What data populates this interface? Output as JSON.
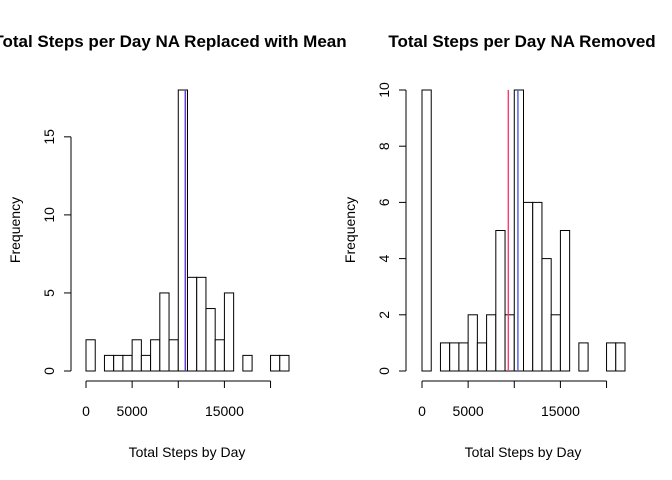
{
  "chart_data": [
    {
      "type": "bar",
      "title": "Total Steps per Day NA Replaced with Mean",
      "xlabel": "Total Steps by Day",
      "ylabel": "Frequency",
      "bin_width": 1000,
      "bin_starts": [
        0,
        1000,
        2000,
        3000,
        4000,
        5000,
        6000,
        7000,
        8000,
        9000,
        10000,
        11000,
        12000,
        13000,
        14000,
        15000,
        16000,
        17000,
        18000,
        19000,
        20000,
        21000
      ],
      "values": [
        2,
        0,
        1,
        1,
        1,
        2,
        1,
        2,
        5,
        2,
        18,
        6,
        6,
        4,
        2,
        5,
        0,
        1,
        0,
        0,
        1,
        1
      ],
      "xlim": [
        0,
        22000
      ],
      "ylim": [
        0,
        18
      ],
      "xticks": [
        0,
        5000,
        10000,
        15000,
        20000
      ],
      "xtick_labels": [
        "0",
        "5000",
        "",
        "15000",
        ""
      ],
      "yticks": [
        0,
        5,
        10,
        15
      ],
      "ytick_labels": [
        "0",
        "5",
        "10",
        "15"
      ],
      "vlines": [
        {
          "x": 10766,
          "color": "#ff3b6b"
        },
        {
          "x": 10766,
          "color": "#5b3fd6"
        }
      ]
    },
    {
      "type": "bar",
      "title": "Total Steps per Day NA Removed",
      "xlabel": "Total Steps by Day",
      "ylabel": "Frequency",
      "bin_width": 1000,
      "bin_starts": [
        0,
        1000,
        2000,
        3000,
        4000,
        5000,
        6000,
        7000,
        8000,
        9000,
        10000,
        11000,
        12000,
        13000,
        14000,
        15000,
        16000,
        17000,
        18000,
        19000,
        20000,
        21000
      ],
      "values": [
        10,
        0,
        1,
        1,
        1,
        2,
        1,
        2,
        5,
        2,
        10,
        6,
        6,
        4,
        2,
        5,
        0,
        1,
        0,
        0,
        1,
        1
      ],
      "xlim": [
        0,
        22000
      ],
      "ylim": [
        0,
        10
      ],
      "xticks": [
        0,
        5000,
        10000,
        15000,
        20000
      ],
      "xtick_labels": [
        "0",
        "5000",
        "",
        "15000",
        ""
      ],
      "yticks": [
        0,
        2,
        4,
        6,
        8,
        10
      ],
      "ytick_labels": [
        "0",
        "2",
        "4",
        "6",
        "8",
        "10"
      ],
      "vlines": [
        {
          "x": 9354,
          "color": "#ff3b6b"
        },
        {
          "x": 10395,
          "color": "#4a5fd6"
        }
      ]
    }
  ]
}
